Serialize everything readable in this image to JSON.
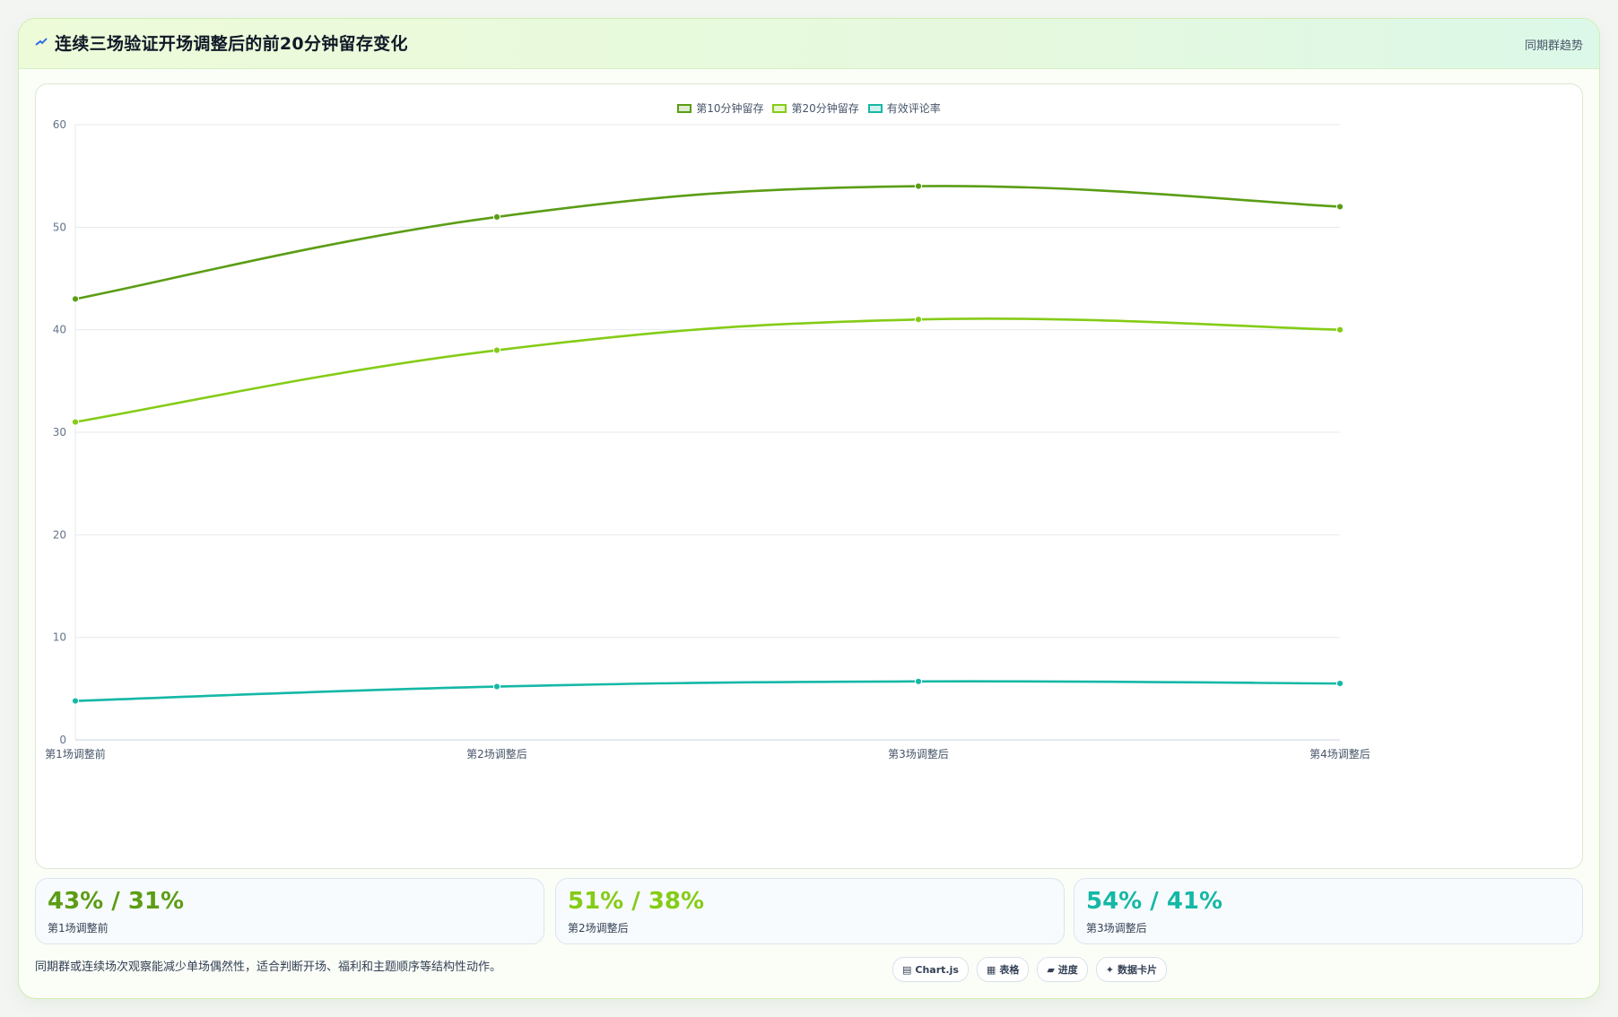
{
  "header": {
    "title": "连续三场验证开场调整后的前20分钟留存变化",
    "tag": "同期群趋势"
  },
  "chart_data": {
    "type": "line",
    "categories": [
      "第1场调整前",
      "第2场调整后",
      "第3场调整后",
      "第4场调整后"
    ],
    "series": [
      {
        "name": "第10分钟留存",
        "values": [
          43,
          51,
          54,
          52
        ],
        "color": "#5b9d15"
      },
      {
        "name": "第20分钟留存",
        "values": [
          31,
          38,
          41,
          40
        ],
        "color": "#84cc16"
      },
      {
        "name": "有效评论率",
        "values": [
          3.8,
          5.2,
          5.7,
          5.5
        ],
        "color": "#14b8a6"
      }
    ],
    "ylim": [
      0,
      60
    ],
    "yticks": [
      0,
      10,
      20,
      30,
      40,
      50,
      60
    ],
    "grid": true,
    "legend": "top-center",
    "curved": true
  },
  "kpis": [
    {
      "value": "43% / 31%",
      "label": "第1场调整前",
      "color": "#5b9d15"
    },
    {
      "value": "51% / 38%",
      "label": "第2场调整后",
      "color": "#84cc16"
    },
    {
      "value": "54% / 41%",
      "label": "第3场调整后",
      "color": "#14b8a6"
    }
  ],
  "footnote": "同期群或连续场次观察能减少单场偶然性，适合判断开场、福利和主题顺序等结构性动作。",
  "chips": [
    {
      "icon": "▤",
      "label": "Chart.js"
    },
    {
      "icon": "▦",
      "label": "表格"
    },
    {
      "icon": "▰",
      "label": "进度"
    },
    {
      "icon": "✦",
      "label": "数据卡片"
    }
  ]
}
